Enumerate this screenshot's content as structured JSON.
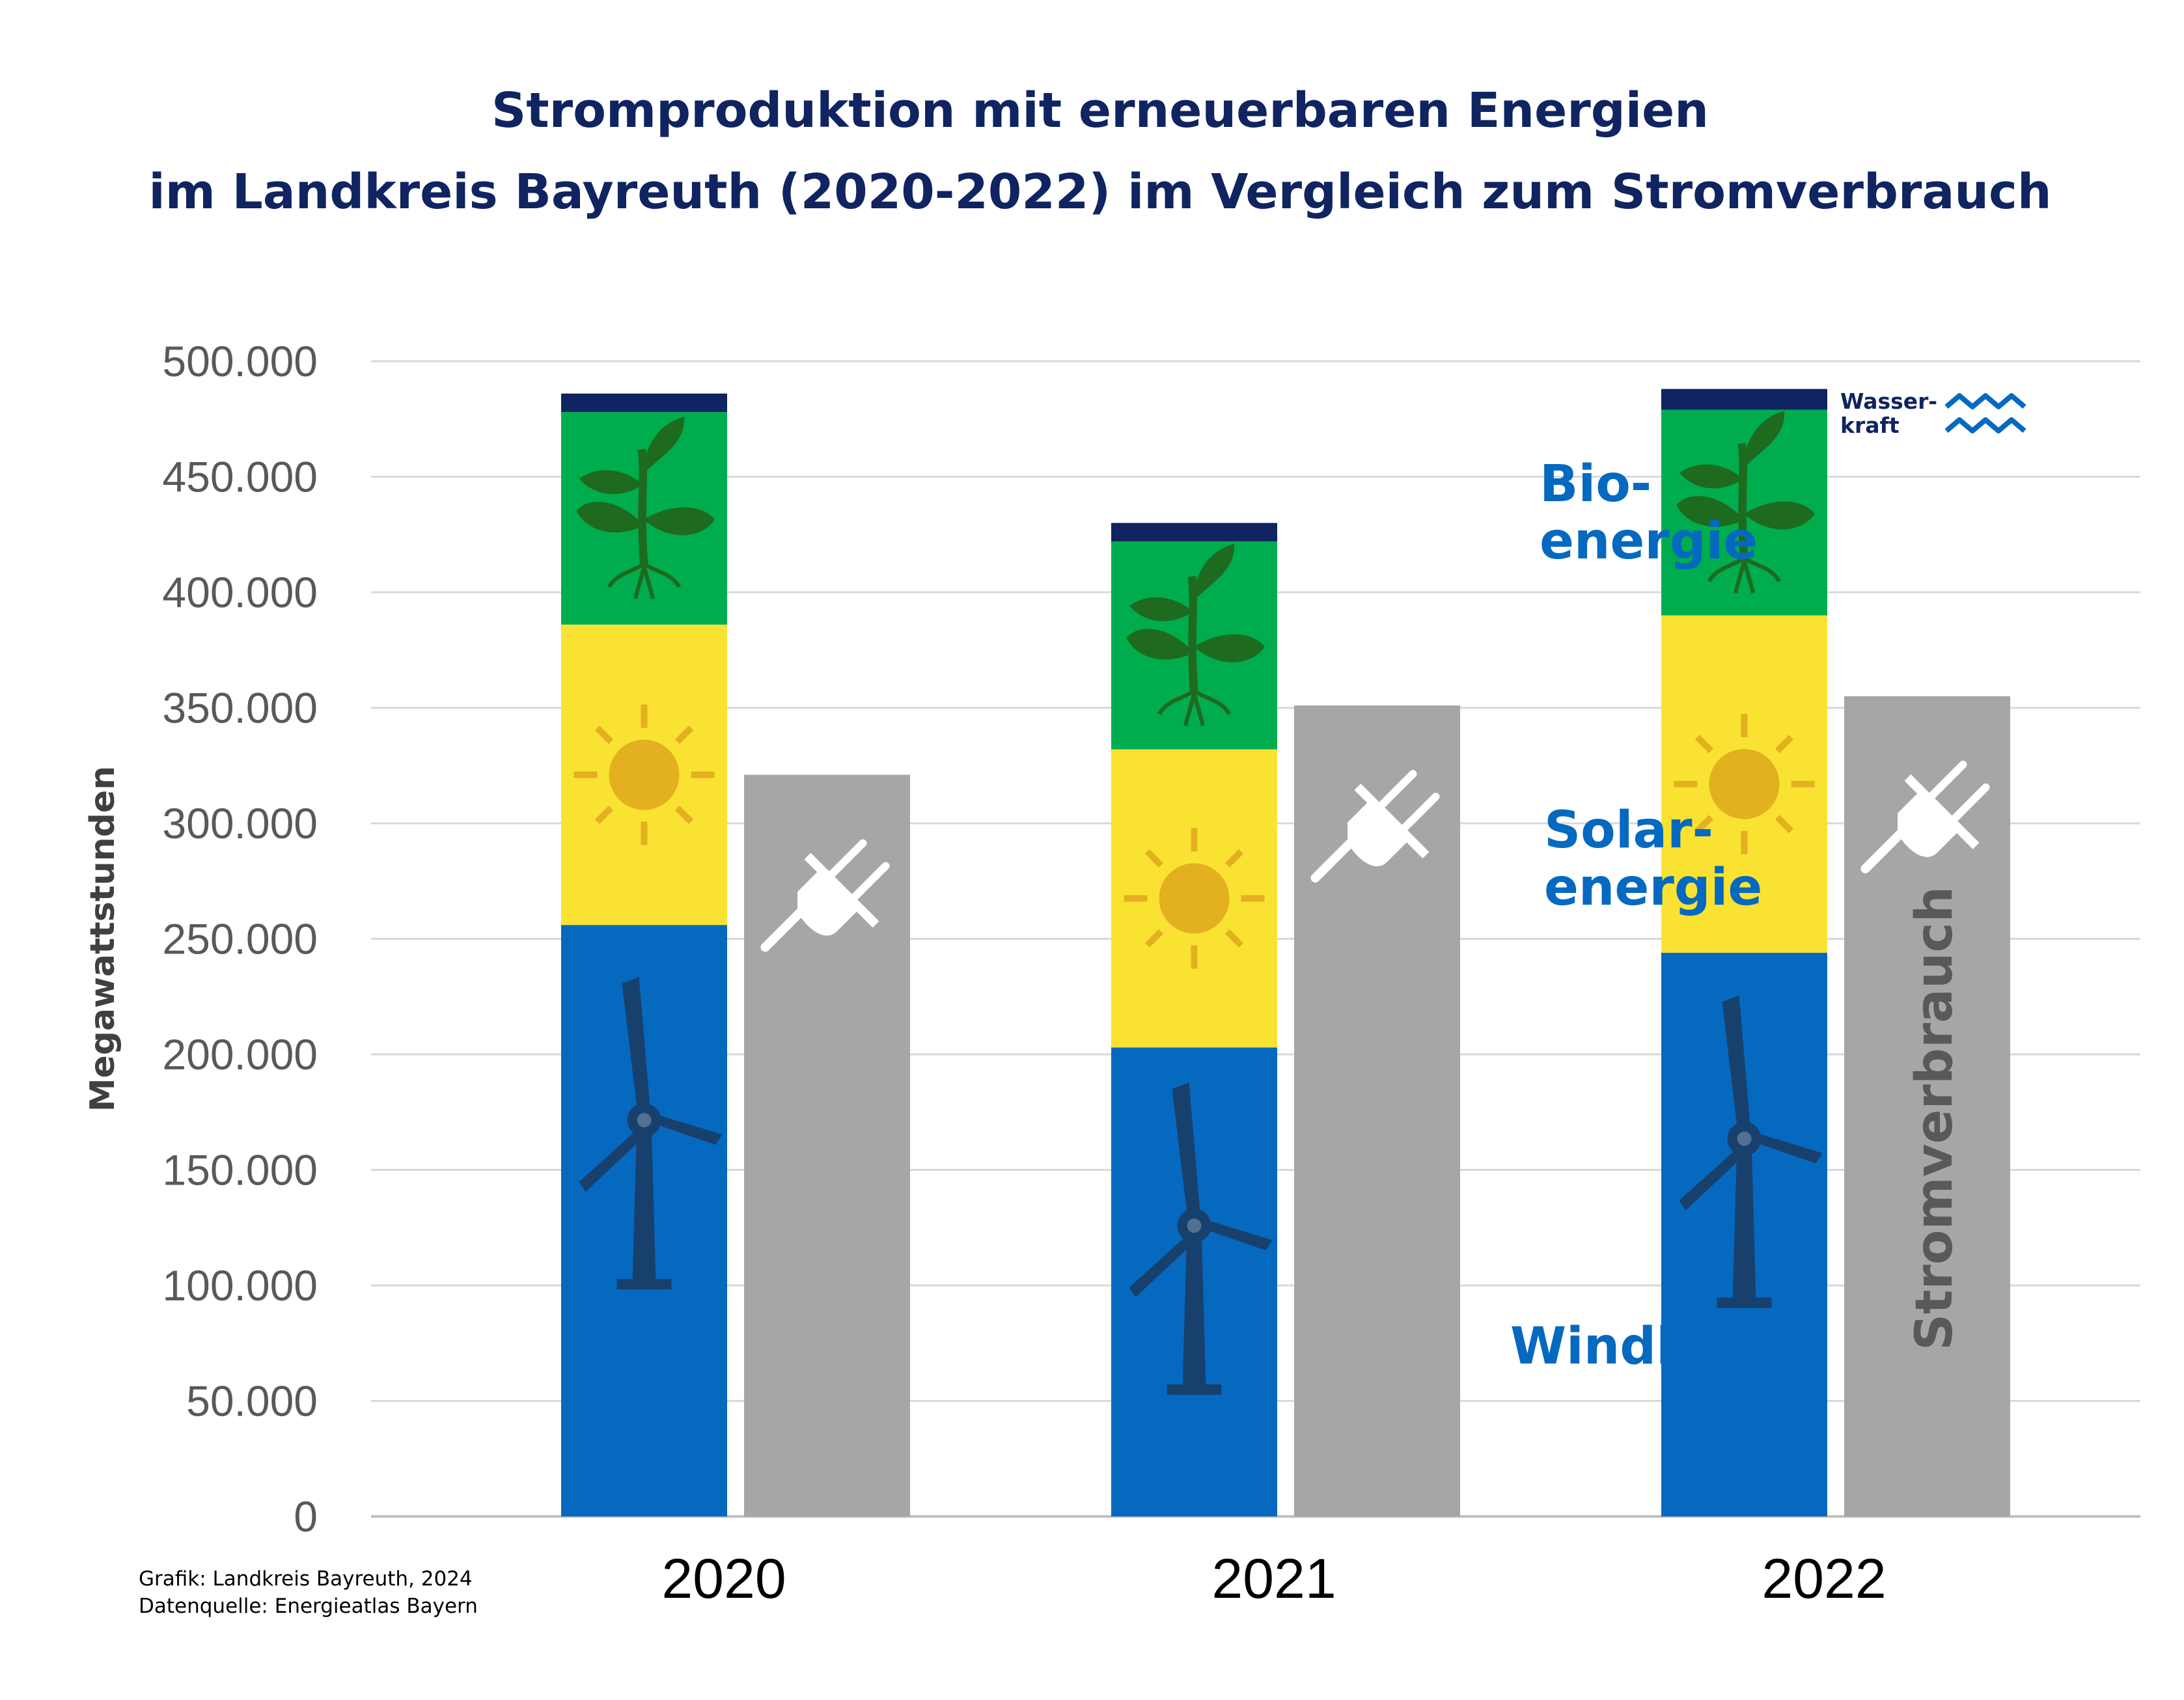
{
  "title": {
    "line1": "Stromproduktion mit erneuerbaren Energien",
    "line2": "im Landkreis Bayreuth (2020-2022) im Vergleich zum Stromverbrauch"
  },
  "source": {
    "line1": "Grafik: Landkreis Bayreuth, 2024",
    "line2": "Datenquelle: Energieatlas Bayern"
  },
  "labels": {
    "bio_line1": "Bio-",
    "bio_line2": "energie",
    "solar_line1": "Solar-",
    "solar_line2": "energie",
    "wind": "Windkraft",
    "verbrauch": "Stromverbrauch",
    "wasser_line1": "Wasser-",
    "wasser_line2": "kraft"
  },
  "colors": {
    "Windkraft": "#0569c0",
    "Solarenergie": "#fae232",
    "Bioenergie": "#00ad4e",
    "Wasserkraft": "#0f2460",
    "Stromverbrauch": "#a6a6a6",
    "label_blue": "#0569c0",
    "icon_dark": "#18406d",
    "sun": "#e3b020",
    "plant": "#1e6b20"
  },
  "icons": {
    "wind": "wind-turbine-icon",
    "solar": "sun-icon",
    "bio": "plant-icon",
    "verbrauch": "plug-icon",
    "wasser": "water-waves-icon"
  },
  "chart_data": {
    "type": "bar",
    "stacked": true,
    "categories": [
      "2020",
      "2021",
      "2022"
    ],
    "series": [
      {
        "name": "Windkraft",
        "stack": "Erzeugung",
        "values": [
          256000,
          203000,
          244000
        ]
      },
      {
        "name": "Solarenergie",
        "stack": "Erzeugung",
        "values": [
          130000,
          129000,
          146000
        ]
      },
      {
        "name": "Bioenergie",
        "stack": "Erzeugung",
        "values": [
          92000,
          90000,
          89000
        ]
      },
      {
        "name": "Wasserkraft",
        "stack": "Erzeugung",
        "values": [
          8000,
          8000,
          9000
        ]
      },
      {
        "name": "Stromverbrauch",
        "stack": "Verbrauch",
        "values": [
          321000,
          351000,
          355000
        ]
      }
    ],
    "ylabel": "Megawattstunden",
    "ylim": [
      0,
      500000
    ],
    "yticks": [
      "0",
      "50.000",
      "100.000",
      "150.000",
      "200.000",
      "250.000",
      "300.000",
      "350.000",
      "400.000",
      "450.000",
      "500.000"
    ],
    "grid": true,
    "legend": "none"
  }
}
